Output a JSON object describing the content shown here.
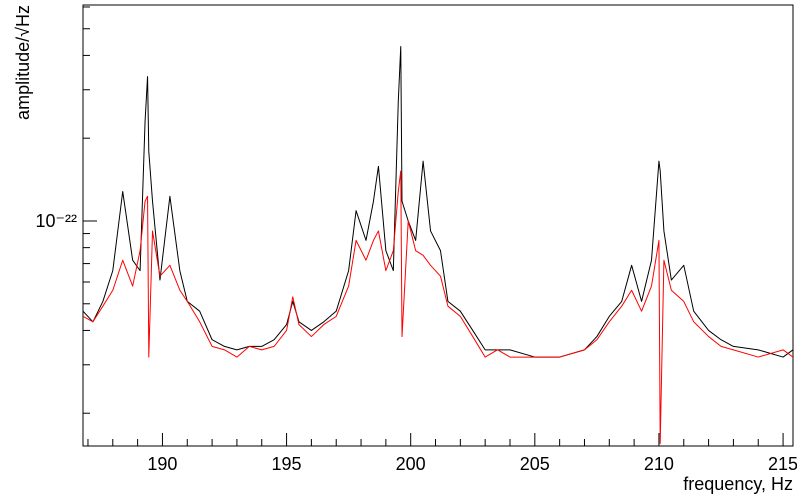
{
  "chart_data": {
    "type": "line",
    "xlabel": "frequency, Hz",
    "ylabel": "amplitude/√Hz",
    "log_y": true,
    "xlim": [
      186.8,
      215.4
    ],
    "xticks": [
      190,
      195,
      200,
      205,
      210,
      215
    ],
    "xminor": [
      187,
      188,
      189,
      191,
      192,
      193,
      194,
      196,
      197,
      198,
      199,
      201,
      202,
      203,
      204,
      206,
      207,
      208,
      209,
      211,
      212,
      213,
      214
    ],
    "ylim": [
      1.52e-23,
      6.1e-22
    ],
    "yticks": [
      {
        "value": 1e-22,
        "label": "10⁻²²"
      }
    ],
    "yminor": [
      2e-23,
      3e-23,
      4e-23,
      5e-23,
      6e-23,
      7e-23,
      8e-23,
      9e-23,
      2e-22,
      3e-22,
      4e-22,
      5e-22,
      6e-22
    ],
    "x": [
      186.8,
      187.2,
      187.6,
      188.0,
      188.4,
      188.8,
      189.1,
      189.3,
      189.4,
      189.45,
      189.6,
      189.9,
      190.3,
      190.7,
      191.0,
      191.5,
      192.0,
      192.5,
      193.0,
      193.5,
      194.0,
      194.5,
      195.0,
      195.25,
      195.5,
      196.0,
      196.5,
      197.0,
      197.5,
      197.8,
      198.2,
      198.5,
      198.7,
      199.0,
      199.3,
      199.5,
      199.6,
      199.65,
      199.9,
      200.2,
      200.5,
      200.8,
      201.2,
      201.5,
      202.0,
      202.5,
      203.0,
      203.5,
      204.0,
      205.0,
      206.0,
      207.0,
      207.5,
      208.0,
      208.5,
      208.9,
      209.3,
      209.7,
      210.0,
      210.05,
      210.2,
      210.5,
      211.0,
      211.4,
      212.0,
      212.5,
      213.0,
      214.0,
      215.0,
      215.4
    ],
    "series": [
      {
        "color": "#000000",
        "values": [
          4.7e-23,
          4.3e-23,
          5.1e-23,
          6.6e-23,
          1.28e-22,
          7.2e-23,
          6.6e-23,
          2.3e-22,
          3.35e-22,
          1.79e-22,
          1.18e-22,
          6.1e-23,
          1.23e-22,
          6.6e-23,
          5.1e-23,
          4.7e-23,
          3.7e-23,
          3.5e-23,
          3.4e-23,
          3.5e-23,
          3.5e-23,
          3.7e-23,
          4.2e-23,
          5.1e-23,
          4.3e-23,
          4e-23,
          4.3e-23,
          4.7e-23,
          6.6e-23,
          1.09e-22,
          8.5e-23,
          1.18e-22,
          1.58e-22,
          7.8e-23,
          6.6e-23,
          2.72e-22,
          4.31e-22,
          1.18e-22,
          1e-22,
          8.5e-23,
          1.65e-22,
          9.2e-23,
          7.8e-23,
          5.1e-23,
          4.7e-23,
          4e-23,
          3.4e-23,
          3.4e-23,
          3.4e-23,
          3.2e-23,
          3.2e-23,
          3.4e-23,
          3.8e-23,
          4.5e-23,
          5.1e-23,
          6.9e-23,
          5.1e-23,
          7.2e-23,
          1.65e-22,
          1.52e-22,
          9.2e-23,
          6.1e-23,
          6.9e-23,
          4.7e-23,
          4e-23,
          3.7e-23,
          3.5e-23,
          3.4e-23,
          3.2e-23,
          3.4e-23
        ]
      },
      {
        "color": "#ff0000",
        "values": [
          4.5e-23,
          4.3e-23,
          4.9e-23,
          5.6e-23,
          7.2e-23,
          5.8e-23,
          7.8e-23,
          1.18e-22,
          1.23e-22,
          3.2e-23,
          9.2e-23,
          6.3e-23,
          6.9e-23,
          5.6e-23,
          5.1e-23,
          4.3e-23,
          3.5e-23,
          3.4e-23,
          3.2e-23,
          3.5e-23,
          3.4e-23,
          3.5e-23,
          4e-23,
          5.3e-23,
          4.2e-23,
          3.8e-23,
          4.2e-23,
          4.5e-23,
          5.8e-23,
          8.5e-23,
          7.2e-23,
          8.5e-23,
          9.2e-23,
          6.6e-23,
          7.8e-23,
          1.28e-22,
          1.52e-22,
          3.8e-23,
          1e-22,
          7.8e-23,
          7.5e-23,
          6.9e-23,
          6.3e-23,
          4.9e-23,
          4.5e-23,
          3.8e-23,
          3.2e-23,
          3.4e-23,
          3.2e-23,
          3.2e-23,
          3.2e-23,
          3.4e-23,
          3.7e-23,
          4.3e-23,
          4.9e-23,
          5.6e-23,
          4.7e-23,
          5.8e-23,
          8.5e-23,
          1.55e-23,
          7.2e-23,
          5.6e-23,
          5.1e-23,
          4.3e-23,
          3.8e-23,
          3.5e-23,
          3.4e-23,
          3.2e-23,
          3.4e-23,
          3.2e-23
        ]
      }
    ]
  }
}
